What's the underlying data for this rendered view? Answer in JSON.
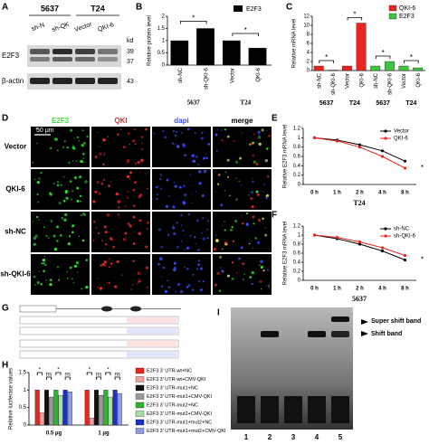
{
  "panel_labels": [
    "A",
    "B",
    "C",
    "D",
    "E",
    "F",
    "G",
    "H",
    "I"
  ],
  "blot": {
    "cell_lines": [
      "5637",
      "T24"
    ],
    "lanes": [
      "sh-N",
      "sh-QK",
      "Vector",
      "QKI-6"
    ],
    "kd_label": "kd",
    "rows": [
      "E2F3",
      "β-actin"
    ],
    "markers": [
      "39",
      "37",
      "43"
    ]
  },
  "microscopy": {
    "columns": [
      "E2F3",
      "QKI",
      "dapi",
      "merge"
    ],
    "rows": [
      "Vector",
      "QKI-6",
      "sh-NC",
      "sh-QKI-6"
    ],
    "scale_bar": "50 μm"
  },
  "gel": {
    "bands": [
      "Super shift band",
      "Shift band"
    ],
    "lanes": [
      "1",
      "2",
      "3",
      "4",
      "5"
    ]
  },
  "chart_data": [
    {
      "type": "bar",
      "y_label": "Relative protein level",
      "categories": [
        "sh-NC",
        "sh-QKI-6",
        "Vector",
        "QKI-6"
      ],
      "group_labels": [
        "5637",
        "T24"
      ],
      "series": [
        {
          "name": "E2F3",
          "color": "#000000",
          "values": [
            1,
            1.5,
            1,
            0.7
          ]
        }
      ],
      "ylim": [
        0,
        2
      ],
      "yticks": [
        0,
        0.5,
        1,
        1.5,
        2
      ],
      "annotations": [
        "*",
        "*"
      ]
    },
    {
      "type": "bar",
      "y_label": "Relative mRNA level",
      "categories": [
        "sh-NC",
        "sh-QKI-6",
        "Vector",
        "QKI-6",
        "sh-NC",
        "sh-QKI-6",
        "Vector",
        "QKI-6"
      ],
      "group_labels": [
        "5637",
        "T24",
        "5637",
        "T24"
      ],
      "series": [
        {
          "name": "QKI-6",
          "color": "#e8251f",
          "values": [
            1,
            0.1,
            1,
            10.5,
            null,
            null,
            null,
            null
          ]
        },
        {
          "name": "E2F3",
          "color": "#3ec43e",
          "values": [
            null,
            null,
            null,
            null,
            1,
            2,
            1,
            0.6
          ]
        }
      ],
      "ylim": [
        0,
        12
      ],
      "yticks": [
        0,
        2,
        4,
        6,
        8,
        10,
        12
      ],
      "annotations": [
        "*",
        "*",
        "*",
        "*"
      ]
    },
    {
      "type": "line",
      "y_label": "Relative E2F3 mRNA level",
      "x_title": "T24",
      "categories": [
        "0 h",
        "1 h",
        "2 h",
        "4 h",
        "8 h"
      ],
      "series": [
        {
          "name": "Vector",
          "color": "#000000",
          "values": [
            1,
            0.95,
            0.85,
            0.72,
            0.5
          ]
        },
        {
          "name": "QKI-6",
          "color": "#e8251f",
          "values": [
            1,
            0.93,
            0.8,
            0.6,
            0.35
          ]
        }
      ],
      "ylim": [
        0,
        1.2
      ],
      "yticks": [
        0,
        0.2,
        0.4,
        0.6,
        0.8,
        1,
        1.2
      ],
      "annotations": [
        "*"
      ]
    },
    {
      "type": "line",
      "y_label": "Relative E2F3 mRNA level",
      "x_title": "5637",
      "categories": [
        "0 h",
        "1 h",
        "2 h",
        "4 h",
        "8 h"
      ],
      "series": [
        {
          "name": "sh-NC",
          "color": "#000000",
          "values": [
            1,
            0.92,
            0.8,
            0.65,
            0.45
          ]
        },
        {
          "name": "sh-QKI-6",
          "color": "#e8251f",
          "values": [
            1,
            0.95,
            0.85,
            0.72,
            0.55
          ]
        }
      ],
      "ylim": [
        0,
        1.2
      ],
      "yticks": [
        0,
        0.2,
        0.4,
        0.6,
        0.8,
        1,
        1.2
      ],
      "annotations": [
        "*"
      ]
    },
    {
      "type": "bar",
      "y_label": "Relative luciferase values",
      "categories": [
        "0.5 μg",
        "1 μg"
      ],
      "series": [
        {
          "name": "E2F3 3' UTR-wt+NC",
          "color": "#e8251f",
          "values": [
            1,
            1
          ]
        },
        {
          "name": "E2F3 3' UTR-wt+CMV-QKI",
          "color": "#f2a0a0",
          "values": [
            0.35,
            0.2
          ]
        },
        {
          "name": "E2F3 3' UTR-mut1+NC",
          "color": "#111111",
          "values": [
            1,
            1
          ]
        },
        {
          "name": "E2F3 3' UTR-mut1+CMV-QKI",
          "color": "#9a9a9a",
          "values": [
            0.8,
            0.85
          ]
        },
        {
          "name": "E2F3 3' UTR-mut2+NC",
          "color": "#2fb52f",
          "values": [
            1,
            1
          ]
        },
        {
          "name": "E2F3 3' UTR-mut2+CMV-QKI",
          "color": "#a6e0a6",
          "values": [
            0.85,
            0.8
          ]
        },
        {
          "name": "E2F3 3' UTR-mut1+mut2+NC",
          "color": "#1c33c4",
          "values": [
            1,
            1
          ]
        },
        {
          "name": "E2F3 3' UTR-mut1+mut2+CMV-QKI",
          "color": "#8f9ce6",
          "values": [
            0.95,
            0.9
          ]
        }
      ],
      "ylim": [
        0,
        1.5
      ],
      "yticks": [
        0,
        0.5,
        1,
        1.5
      ],
      "annotations": [
        "*",
        "ns",
        "*",
        "ns",
        "*",
        "ns",
        "*",
        "ns"
      ]
    }
  ]
}
